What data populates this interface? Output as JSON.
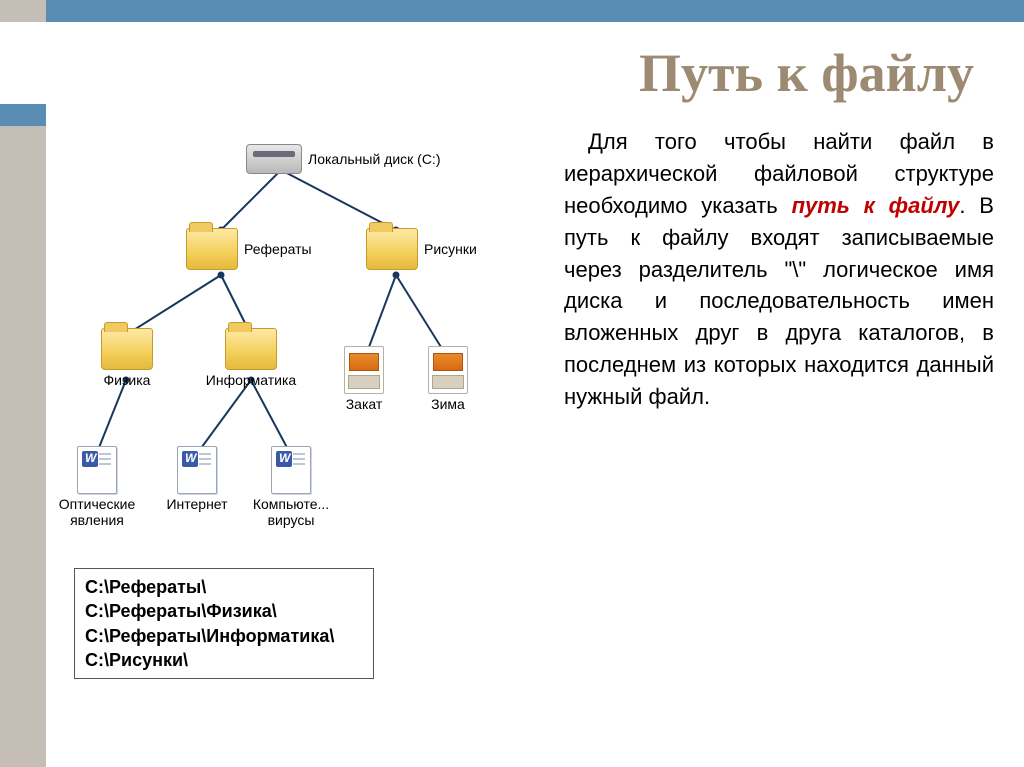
{
  "title": "Путь к файлу",
  "colors": {
    "title": "#9c8a72",
    "bar_grey": "#c4beb6",
    "bar_blue": "#5a8db3",
    "keyword": "#c00000",
    "line": "#17375e"
  },
  "paragraph": {
    "pre": "Для того чтобы найти файл в иерархической файловой структуре необходимо указать ",
    "keyword": "путь к файлу",
    "post": ". В путь к файлу входят записываемые через разделитель \"\\\" логическое имя диска и последовательность имен вложенных друг в друга каталогов, в последнем из которых находится данный нужный файл."
  },
  "paths": [
    "С:\\Рефераты\\",
    "С:\\Рефераты\\Физика\\",
    "С:\\Рефераты\\Информатика\\",
    "С:\\Рисунки\\"
  ],
  "tree": {
    "line_color": "#17375e",
    "line_width": 2,
    "edges": [
      [
        215,
        40,
        155,
        100
      ],
      [
        215,
        40,
        330,
        100
      ],
      [
        155,
        145,
        60,
        205
      ],
      [
        155,
        145,
        185,
        205
      ],
      [
        330,
        145,
        300,
        225
      ],
      [
        330,
        145,
        380,
        225
      ],
      [
        60,
        250,
        30,
        325
      ],
      [
        185,
        250,
        130,
        325
      ],
      [
        185,
        250,
        225,
        325
      ]
    ],
    "nodes": {
      "root": {
        "label": "Локальный диск (С:)"
      },
      "referaty": {
        "label": "Рефераты"
      },
      "risunki": {
        "label": "Рисунки"
      },
      "fizika": {
        "label": "Физика"
      },
      "informatika": {
        "label": "Информатика"
      },
      "zakat": {
        "label": "Закат"
      },
      "zima": {
        "label": "Зима"
      },
      "optic": {
        "label_l1": "Оптические",
        "label_l2": "явления"
      },
      "internet": {
        "label": "Интернет"
      },
      "virusy": {
        "label_l1": "Компьюте...",
        "label_l2": "вирусы"
      }
    }
  }
}
